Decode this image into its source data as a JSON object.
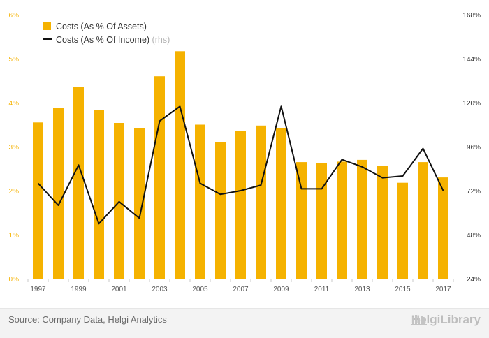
{
  "chart_data": {
    "type": "bar",
    "categories": [
      "1997",
      "1998",
      "1999",
      "2000",
      "2001",
      "2002",
      "2003",
      "2004",
      "2005",
      "2006",
      "2007",
      "2008",
      "2009",
      "2010",
      "2011",
      "2012",
      "2013",
      "2014",
      "2015",
      "2016",
      "2017"
    ],
    "x_tick_labels": [
      "1997",
      "1999",
      "2001",
      "2003",
      "2005",
      "2007",
      "2009",
      "2011",
      "2013",
      "2015",
      "2017"
    ],
    "series": [
      {
        "name": "Costs (As % Of Assets)",
        "type": "bar",
        "axis": "left",
        "color": "#f5b200",
        "values": [
          3.55,
          3.88,
          4.35,
          3.84,
          3.54,
          3.42,
          4.6,
          5.17,
          3.5,
          3.11,
          3.35,
          3.48,
          3.42,
          2.65,
          2.63,
          2.66,
          2.7,
          2.57,
          2.18,
          2.65,
          2.3
        ]
      },
      {
        "name": "Costs (As % Of Income)",
        "suffix": "(rhs)",
        "type": "line",
        "axis": "right",
        "color": "#111111",
        "values": [
          76,
          64,
          86,
          54,
          66,
          57,
          110,
          118,
          76,
          70,
          72,
          75,
          118,
          73,
          73,
          89,
          85,
          79,
          80,
          95,
          72
        ]
      }
    ],
    "y_left": {
      "min": 0,
      "max": 6,
      "ticks": [
        "0%",
        "1%",
        "2%",
        "3%",
        "4%",
        "5%",
        "6%"
      ],
      "color": "#f5b200"
    },
    "y_right": {
      "min": 24,
      "max": 168,
      "ticks": [
        "24%",
        "48%",
        "72%",
        "96%",
        "120%",
        "144%",
        "168%"
      ]
    },
    "legend_position": "top-left",
    "grid": false
  },
  "footer": {
    "source": "Source: Company Data, Helgi Analytics",
    "brand": "HelgiLibrary"
  }
}
